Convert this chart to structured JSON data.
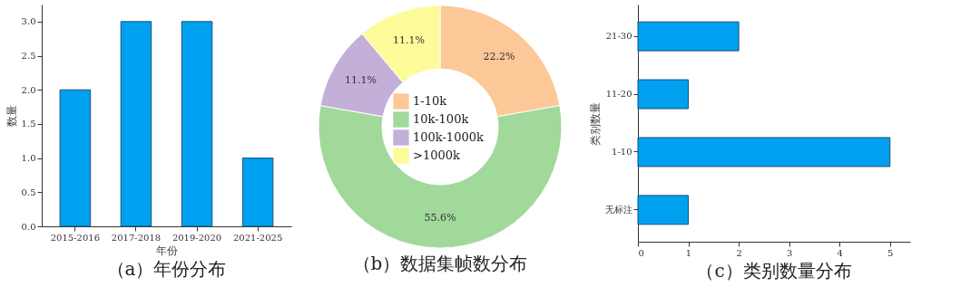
{
  "chart_data": [
    {
      "type": "bar",
      "title": "（a）年份分布",
      "xlabel": "年份",
      "ylabel": "数量",
      "categories": [
        "2015-2016",
        "2017-2018",
        "2019-2020",
        "2021-2025"
      ],
      "values": [
        2,
        3,
        3,
        1
      ],
      "color": "#00a0f0",
      "ylim": [
        0,
        3.25
      ],
      "yticks": [
        {
          "value": 0,
          "label": "0.0"
        },
        {
          "value": 0.5,
          "label": "0.5"
        },
        {
          "value": 1,
          "label": "1.0"
        },
        {
          "value": 1.5,
          "label": "1.5"
        },
        {
          "value": 2,
          "label": "2.0"
        },
        {
          "value": 2.5,
          "label": "2.5"
        },
        {
          "value": 3,
          "label": "3.0"
        }
      ]
    },
    {
      "type": "donut",
      "title": "（b）数据集帧数分布",
      "categories": [
        "1-10k",
        "10k-100k",
        "100k-1000k",
        ">1000k"
      ],
      "values": [
        22.2,
        55.6,
        11.1,
        11.1
      ],
      "colors": [
        "#fdc897",
        "#a0d99a",
        "#c2b0d8",
        "#fdfb9a"
      ],
      "value_labels": [
        "22.2%",
        "55.6%",
        "11.1%",
        "11.1%"
      ],
      "legend": "center"
    },
    {
      "type": "bar",
      "orientation": "horizontal",
      "title": "（c）类别数量分布",
      "ylabel": "类别数量",
      "categories": [
        "21-30",
        "11-20",
        "1-10",
        "无标注"
      ],
      "values": [
        2,
        1,
        5,
        1
      ],
      "color": "#00a0f0",
      "xlim": [
        0,
        5.4
      ],
      "xticks": [
        0,
        1,
        2,
        3,
        4,
        5
      ]
    }
  ]
}
